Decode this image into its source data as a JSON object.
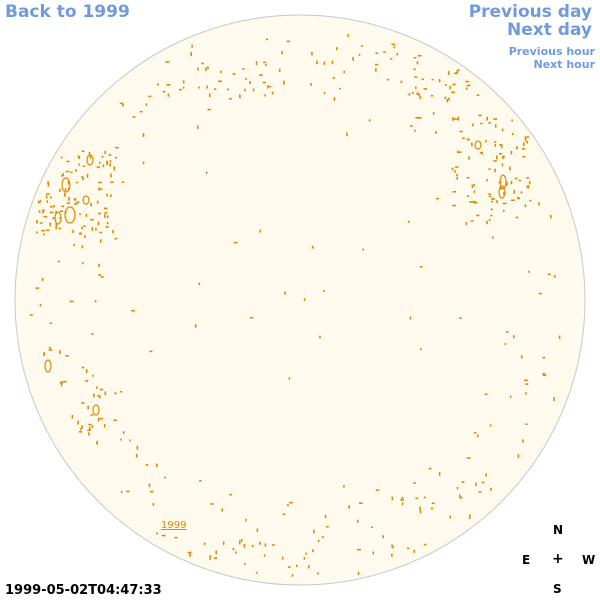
{
  "nav": {
    "back": "Back to 1999",
    "previous_day": "Previous day",
    "next_day": "Next day",
    "previous_hour": "Previous hour",
    "next_hour": "Next hour"
  },
  "feature_label": "1999",
  "compass": {
    "north": "N",
    "east": "E",
    "center": "+",
    "west": "W",
    "south": "S"
  },
  "timestamp": "1999-05-02T04:47:33",
  "colors": {
    "disk_fill": "#fffaee",
    "disk_edge": "#c8c8c8",
    "feature": "#e08a00",
    "link": "#6f9ae0"
  }
}
